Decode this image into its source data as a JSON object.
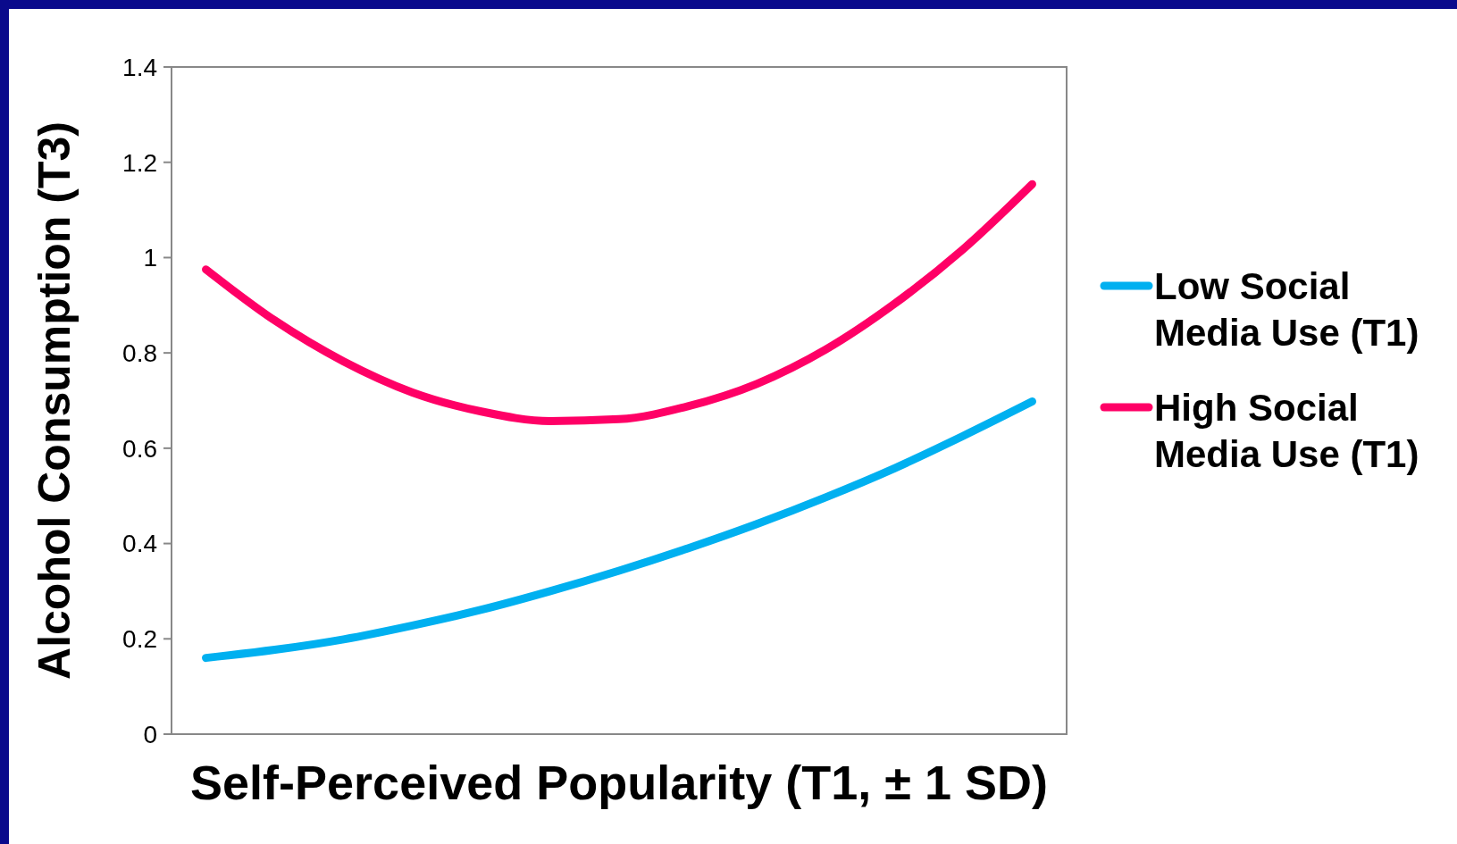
{
  "chart_data": {
    "type": "line",
    "xlabel": "Self-Perceived Popularity (T1, ± 1 SD)",
    "ylabel": "Alcohol Consumption (T3)",
    "categories": [
      null,
      null,
      null,
      null,
      null,
      null,
      null,
      null,
      null,
      null,
      null,
      null,
      null
    ],
    "series": [
      {
        "name": "Low Social Media Use (T1)",
        "color": "#00b0f0",
        "values": [
          0.16,
          0.177,
          0.199,
          0.228,
          0.261,
          0.3,
          0.343,
          0.39,
          0.441,
          0.497,
          0.558,
          0.626,
          0.698
        ]
      },
      {
        "name": "High Social Media Use (T1)",
        "color": "#ff0066",
        "values": [
          0.975,
          0.868,
          0.782,
          0.717,
          0.677,
          0.657,
          0.661,
          0.688,
          0.735,
          0.807,
          0.903,
          1.018,
          1.154
        ]
      }
    ],
    "ylim": [
      0,
      1.4
    ],
    "yticks": [
      0,
      0.2,
      0.4,
      0.6,
      0.8,
      1,
      1.2,
      1.4
    ],
    "legend": "right",
    "marker": "none",
    "line_style": "solid"
  }
}
